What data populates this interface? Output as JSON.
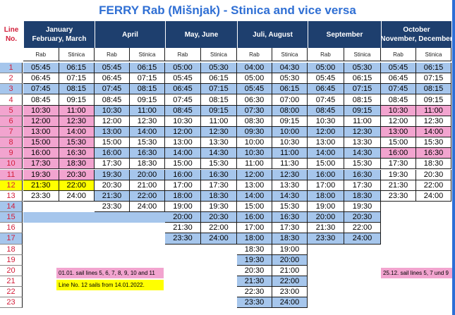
{
  "title": "FERRY Rab (Mišnjak) - Stinica and vice versa",
  "line_header": [
    "Line",
    "No."
  ],
  "sub_labels": [
    "Rab",
    "Stinica"
  ],
  "colors": {
    "blue": "#a6c6ec",
    "pink": "#f2a4cf",
    "yellow": "#ffff00",
    "white": "#ffffff",
    "header": "#1e3f6e",
    "red": "#d21e3a"
  },
  "line_numbers": [
    "1",
    "2",
    "3",
    "4",
    "5",
    "6",
    "7",
    "8",
    "9",
    "10",
    "11",
    "12",
    "13",
    "14",
    "15",
    "16",
    "17",
    "18",
    "19",
    "20",
    "21",
    "22",
    "23"
  ],
  "periods": [
    {
      "name": [
        "January",
        "February, March"
      ],
      "rows": [
        [
          "05:45",
          "06:15",
          "blue"
        ],
        [
          "06:45",
          "07:15",
          "white"
        ],
        [
          "07:45",
          "08:15",
          "blue"
        ],
        [
          "08:45",
          "09:15",
          "white"
        ],
        [
          "10:30",
          "11:00",
          "pink"
        ],
        [
          "12:00",
          "12:30",
          "pink"
        ],
        [
          "13:00",
          "14:00",
          "pink"
        ],
        [
          "15:00",
          "15:30",
          "pink"
        ],
        [
          "16:00",
          "16:30",
          "pink"
        ],
        [
          "17:30",
          "18:30",
          "pink"
        ],
        [
          "19:30",
          "20:30",
          "pink"
        ],
        [
          "21:30",
          "22:00",
          "yellow"
        ],
        [
          "23:30",
          "24:00",
          "white"
        ]
      ]
    },
    {
      "name": [
        "April"
      ],
      "rows": [
        [
          "05:45",
          "06:15",
          "blue"
        ],
        [
          "06:45",
          "07:15",
          "white"
        ],
        [
          "07:45",
          "08:15",
          "blue"
        ],
        [
          "08:45",
          "09:15",
          "white"
        ],
        [
          "10:30",
          "11:00",
          "blue"
        ],
        [
          "12:00",
          "12:30",
          "white"
        ],
        [
          "13:00",
          "14:00",
          "blue"
        ],
        [
          "15:00",
          "15:30",
          "white"
        ],
        [
          "16:00",
          "16:30",
          "blue"
        ],
        [
          "17:30",
          "18:30",
          "white"
        ],
        [
          "19:30",
          "20:00",
          "blue"
        ],
        [
          "20:30",
          "21:00",
          "white"
        ],
        [
          "21:30",
          "22:00",
          "blue"
        ],
        [
          "23:30",
          "24:00",
          "white"
        ]
      ]
    },
    {
      "name": [
        "May, June"
      ],
      "rows": [
        [
          "05:00",
          "05:30",
          "blue"
        ],
        [
          "05:45",
          "06:15",
          "white"
        ],
        [
          "06:45",
          "07:15",
          "blue"
        ],
        [
          "07:45",
          "08:15",
          "white"
        ],
        [
          "08:45",
          "09:15",
          "blue"
        ],
        [
          "10:30",
          "11:00",
          "white"
        ],
        [
          "12:00",
          "12:30",
          "blue"
        ],
        [
          "13:00",
          "13:30",
          "white"
        ],
        [
          "14:00",
          "14:30",
          "blue"
        ],
        [
          "15:00",
          "15:30",
          "white"
        ],
        [
          "16:00",
          "16:30",
          "blue"
        ],
        [
          "17:00",
          "17:30",
          "white"
        ],
        [
          "18:00",
          "18:30",
          "blue"
        ],
        [
          "19:00",
          "19:30",
          "white"
        ],
        [
          "20:00",
          "20:30",
          "blue"
        ],
        [
          "21:30",
          "22:00",
          "white"
        ],
        [
          "23:30",
          "24:00",
          "blue"
        ]
      ]
    },
    {
      "name": [
        "Juli, August"
      ],
      "rows": [
        [
          "04:00",
          "04:30",
          "blue"
        ],
        [
          "05:00",
          "05:30",
          "white"
        ],
        [
          "05:45",
          "06:15",
          "blue"
        ],
        [
          "06:30",
          "07:00",
          "white"
        ],
        [
          "07:30",
          "08:00",
          "blue"
        ],
        [
          "08:30",
          "09:15",
          "white"
        ],
        [
          "09:30",
          "10:00",
          "blue"
        ],
        [
          "10:00",
          "10:30",
          "white"
        ],
        [
          "10:30",
          "11:00",
          "blue"
        ],
        [
          "11:00",
          "11:30",
          "white"
        ],
        [
          "12:00",
          "12:30",
          "blue"
        ],
        [
          "13:00",
          "13:30",
          "white"
        ],
        [
          "14:00",
          "14:30",
          "blue"
        ],
        [
          "15:00",
          "15:30",
          "white"
        ],
        [
          "16:00",
          "16:30",
          "blue"
        ],
        [
          "17:00",
          "17:30",
          "white"
        ],
        [
          "18:00",
          "18:30",
          "blue"
        ],
        [
          "18:30",
          "19:00",
          "white"
        ],
        [
          "19:30",
          "20:00",
          "blue"
        ],
        [
          "20:30",
          "21:00",
          "white"
        ],
        [
          "21:30",
          "22:00",
          "blue"
        ],
        [
          "22:30",
          "23:00",
          "white"
        ],
        [
          "23:30",
          "24:00",
          "blue"
        ]
      ]
    },
    {
      "name": [
        "September"
      ],
      "rows": [
        [
          "05:00",
          "05:30",
          "blue"
        ],
        [
          "05:45",
          "06:15",
          "white"
        ],
        [
          "06:45",
          "07:15",
          "blue"
        ],
        [
          "07:45",
          "08:15",
          "white"
        ],
        [
          "08:45",
          "09:15",
          "blue"
        ],
        [
          "10:30",
          "11:00",
          "white"
        ],
        [
          "12:00",
          "12:30",
          "blue"
        ],
        [
          "13:00",
          "13:30",
          "white"
        ],
        [
          "14:00",
          "14:30",
          "blue"
        ],
        [
          "15:00",
          "15:30",
          "white"
        ],
        [
          "16:00",
          "16:30",
          "blue"
        ],
        [
          "17:00",
          "17:30",
          "white"
        ],
        [
          "18:00",
          "18:30",
          "blue"
        ],
        [
          "19:00",
          "19:30",
          "white"
        ],
        [
          "20:00",
          "20:30",
          "blue"
        ],
        [
          "21:30",
          "22:00",
          "white"
        ],
        [
          "23:30",
          "24:00",
          "blue"
        ]
      ]
    },
    {
      "name": [
        "October",
        "November, December"
      ],
      "rows": [
        [
          "05:45",
          "06:15",
          "blue"
        ],
        [
          "06:45",
          "07:15",
          "white"
        ],
        [
          "07:45",
          "08:15",
          "blue"
        ],
        [
          "08:45",
          "09:15",
          "white"
        ],
        [
          "10:30",
          "11:00",
          "pink"
        ],
        [
          "12:00",
          "12:30",
          "white"
        ],
        [
          "13:00",
          "14:00",
          "pink"
        ],
        [
          "15:00",
          "15:30",
          "white"
        ],
        [
          "16:00",
          "16:30",
          "pink"
        ],
        [
          "17:30",
          "18:30",
          "white"
        ],
        [
          "19:30",
          "20:30",
          "white"
        ],
        [
          "21:30",
          "22:00",
          "white"
        ],
        [
          "23:30",
          "24:00",
          "white"
        ]
      ]
    }
  ],
  "notes": [
    {
      "text": "01.01. sail lines 5, 6, 7, 8, 9, 10 and 11",
      "color": "pink"
    },
    {
      "text": "Line No. 12 sails from 14.01.2022.",
      "color": "yellow"
    },
    {
      "text": "25.12. sail lines 5, 7 und 9",
      "color": "pink"
    }
  ]
}
